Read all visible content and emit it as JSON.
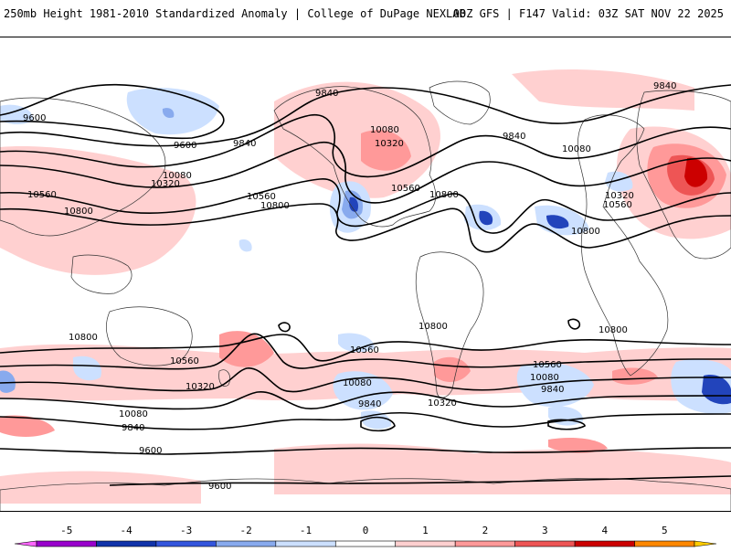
{
  "header": {
    "title": "250mb Height 1981-2010 Standardized Anomaly | College of DuPage NEXLAB",
    "run_info": "00Z GFS | F147 Valid: 03Z SAT NOV 22 2025"
  },
  "map": {
    "contour_labels": [
      {
        "id": "c-9840-a",
        "text": "9840"
      },
      {
        "id": "c-9840-b",
        "text": "9840"
      },
      {
        "id": "c-9840-c",
        "text": "9840"
      },
      {
        "id": "c-9840-d",
        "text": "9840"
      },
      {
        "id": "c-9600-a",
        "text": "9600"
      },
      {
        "id": "c-9600-b",
        "text": "9600"
      },
      {
        "id": "c-10080-a",
        "text": "10080"
      },
      {
        "id": "c-10080-b",
        "text": "10080"
      },
      {
        "id": "c-10080-c",
        "text": "10080"
      },
      {
        "id": "c-10320-a",
        "text": "10320"
      },
      {
        "id": "c-10320-b",
        "text": "10320"
      },
      {
        "id": "c-10320-c",
        "text": "10320"
      },
      {
        "id": "c-10560-a",
        "text": "10560"
      },
      {
        "id": "c-10560-b",
        "text": "10560"
      },
      {
        "id": "c-10560-c",
        "text": "10560"
      },
      {
        "id": "c-10560-d",
        "text": "10560"
      },
      {
        "id": "c-10800-a",
        "text": "10800"
      },
      {
        "id": "c-10800-b",
        "text": "10800"
      },
      {
        "id": "c-10800-c",
        "text": "10800"
      },
      {
        "id": "c-10800-d",
        "text": "10800"
      },
      {
        "id": "c-10800-e",
        "text": "10800"
      },
      {
        "id": "c-10800-f",
        "text": "10800"
      },
      {
        "id": "c-10800-g",
        "text": "10800"
      },
      {
        "id": "s-10560-a",
        "text": "10560"
      },
      {
        "id": "s-10560-b",
        "text": "10560"
      },
      {
        "id": "s-10560-c",
        "text": "10560"
      },
      {
        "id": "s-10320-a",
        "text": "10320"
      },
      {
        "id": "s-10320-b",
        "text": "10320"
      },
      {
        "id": "s-10080-a",
        "text": "10080"
      },
      {
        "id": "s-10080-b",
        "text": "10080"
      },
      {
        "id": "s-10080-c",
        "text": "10080"
      },
      {
        "id": "s-9840-a",
        "text": "9840"
      },
      {
        "id": "s-9840-b",
        "text": "9840"
      },
      {
        "id": "s-9840-c",
        "text": "9840"
      },
      {
        "id": "s-9600-a",
        "text": "9600"
      },
      {
        "id": "s-9600-b",
        "text": "9600"
      }
    ]
  },
  "colorbar": {
    "ticks": [
      "-5",
      "-4",
      "-3",
      "-2",
      "-1",
      "0",
      "1",
      "2",
      "3",
      "4",
      "5"
    ],
    "colors": [
      "#ff66ff",
      "#9900cc",
      "#1133aa",
      "#3355dd",
      "#88aaee",
      "#cce0ff",
      "#ffffff",
      "#ffd0d0",
      "#ff9999",
      "#ee5555",
      "#cc0000",
      "#ff8800",
      "#ffcc00"
    ]
  },
  "colors": {
    "positive_light": "#ffd0d0",
    "positive_mid": "#ff9999",
    "positive_strong": "#ee5555",
    "positive_max": "#cc0000",
    "negative_light": "#cce0ff",
    "negative_mid": "#88aaee",
    "negative_strong": "#2244bb"
  }
}
